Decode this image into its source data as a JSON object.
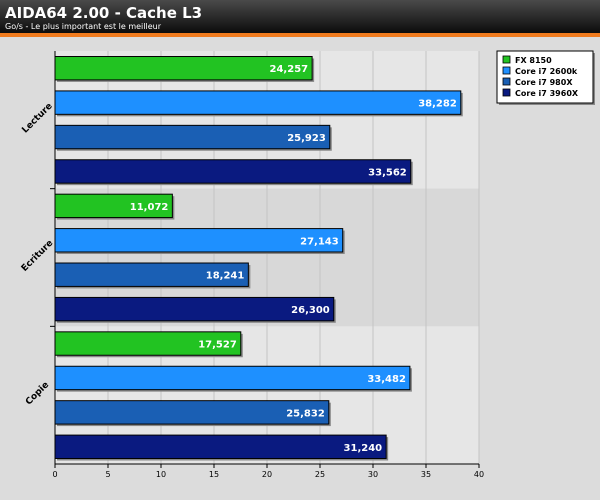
{
  "chart_data": {
    "type": "bar",
    "orientation": "horizontal",
    "title": "AIDA64 2.00 - Cache L3",
    "subtitle": "Go/s - Le plus important est le meilleur",
    "categories": [
      "Lecture",
      "Ecriture",
      "Copie"
    ],
    "series": [
      {
        "name": "FX 8150",
        "color": "#22c322",
        "values": [
          24.257,
          11.072,
          17.527
        ],
        "labels": [
          "24,257",
          "11,072",
          "17,527"
        ]
      },
      {
        "name": "Core i7 2600k",
        "color": "#1e90ff",
        "values": [
          38.282,
          27.143,
          33.482
        ],
        "labels": [
          "38,282",
          "27,143",
          "33,482"
        ]
      },
      {
        "name": "Core i7 980X",
        "color": "#1a5fb4",
        "values": [
          25.923,
          18.241,
          25.832
        ],
        "labels": [
          "25,923",
          "18,241",
          "25,832"
        ]
      },
      {
        "name": "Core i7 3960X",
        "color": "#0a1a80",
        "values": [
          33.562,
          26.3,
          31.24
        ],
        "labels": [
          "33,562",
          "26,300",
          "31,240"
        ]
      }
    ],
    "xlim": [
      0,
      40
    ],
    "xticks": [
      "0",
      "5",
      "10",
      "15",
      "20",
      "25",
      "30",
      "35",
      "40"
    ],
    "grid": true,
    "legend_position": "top-right"
  }
}
